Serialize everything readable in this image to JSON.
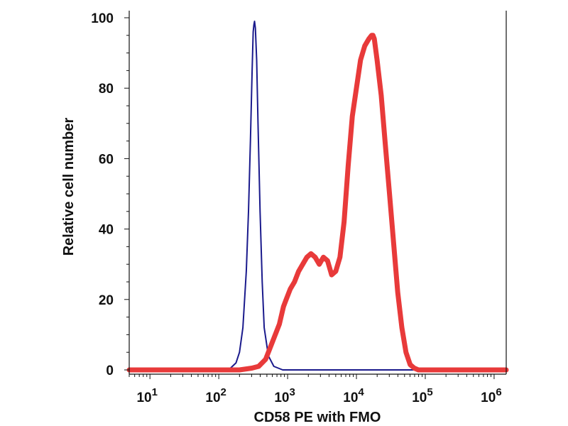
{
  "chart_data": {
    "type": "line",
    "title": "",
    "xlabel": "CD58 PE with FMO",
    "ylabel": "Relative cell number",
    "x_scale": "log",
    "xlim": [
      5,
      1500000
    ],
    "ylim": [
      0,
      100
    ],
    "x_ticks": [
      {
        "value": 10,
        "base": "10",
        "exp": "1"
      },
      {
        "value": 100,
        "base": "10",
        "exp": "2"
      },
      {
        "value": 1000,
        "base": "10",
        "exp": "3"
      },
      {
        "value": 10000,
        "base": "10",
        "exp": "4"
      },
      {
        "value": 100000,
        "base": "10",
        "exp": "5"
      },
      {
        "value": 1000000,
        "base": "10",
        "exp": "6"
      }
    ],
    "y_ticks": [
      "0",
      "20",
      "40",
      "60",
      "80",
      "100"
    ],
    "grid": false,
    "legend": "none",
    "series": [
      {
        "color": "#1a1a8c",
        "x": [
          5,
          120,
          148,
          178,
          200,
          224,
          251,
          270,
          288,
          305,
          316,
          324,
          331,
          340,
          355,
          372,
          398,
          427,
          457,
          525,
          631,
          850,
          1500000
        ],
        "y": [
          0,
          0,
          0.5,
          2,
          5,
          12,
          28,
          45,
          65,
          85,
          96,
          98,
          99,
          97,
          88,
          70,
          45,
          25,
          12,
          4,
          1,
          0,
          0
        ]
      },
      {
        "color": "#e83a3a",
        "x": [
          5,
          200,
          302,
          380,
          479,
          603,
          759,
          871,
          955,
          1096,
          1259,
          1445,
          1660,
          1905,
          2188,
          2512,
          2884,
          3311,
          3802,
          4365,
          5012,
          5754,
          6607,
          7586,
          8710,
          10000,
          11482,
          13183,
          15136,
          16596,
          17378,
          18197,
          19953,
          22909,
          26303,
          30200,
          34674,
          39811,
          45709,
          52481,
          60256,
          69183,
          79433,
          91201,
          1500000
        ],
        "y": [
          0,
          0,
          0.5,
          1,
          3,
          8,
          13,
          18,
          20,
          23,
          25,
          28,
          30,
          32,
          33,
          32,
          30,
          32,
          31,
          27,
          28,
          32,
          42,
          58,
          72,
          80,
          88,
          92,
          94,
          95,
          95,
          94,
          88,
          78,
          64,
          50,
          36,
          22,
          12,
          5,
          1.5,
          0.5,
          0,
          0,
          0
        ]
      }
    ]
  }
}
